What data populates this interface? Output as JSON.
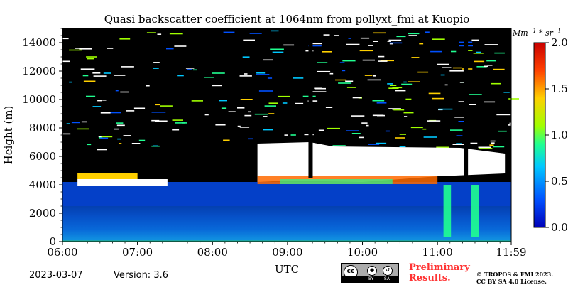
{
  "chart_data": {
    "type": "heatmap",
    "title": "Quasi backscatter coefficient at 1064nm from pollyxt_fmi at Kuopio",
    "xlabel": "UTC",
    "ylabel": "Height (m)",
    "x_ticks": [
      "06:00",
      "07:00",
      "08:00",
      "09:00",
      "10:00",
      "11:00",
      "11:59"
    ],
    "x_range_hours": [
      6.0,
      11.983
    ],
    "y_ticks": [
      0,
      2000,
      4000,
      6000,
      8000,
      10000,
      12000,
      14000
    ],
    "ylim": [
      0,
      15000
    ],
    "colorbar": {
      "label": "Mm^-1 * sr^-1",
      "range": [
        0.0,
        2.0
      ],
      "ticks": [
        "0.0",
        "0.5",
        "1.0",
        "1.5",
        "2.0"
      ],
      "colormap": [
        "#0000b8",
        "#0050ff",
        "#00c8ff",
        "#20ff90",
        "#a0ff00",
        "#ffd000",
        "#ff4000",
        "#c80000"
      ]
    },
    "features": [
      {
        "name": "boundary layer",
        "t_start": 6.0,
        "t_end": 11.98,
        "h_bottom": 0,
        "h_top": 2500,
        "value": 0.3
      },
      {
        "name": "aerosol layer",
        "t_start": 6.0,
        "t_end": 11.98,
        "h_bottom": 2500,
        "h_top": 4200,
        "value": 0.2
      },
      {
        "name": "thin cloud",
        "t_start": 6.2,
        "t_end": 7.4,
        "h_bottom": 3900,
        "h_top": 4800,
        "value": 2.0
      },
      {
        "name": "cloud deck",
        "t_start": 8.6,
        "t_end": 11.9,
        "h_bottom": 4000,
        "h_top": 7000,
        "value": 2.0
      }
    ]
  },
  "footer": {
    "date": "2023-03-07",
    "version": "Version: 3.6",
    "prelim_line1": "Preliminary",
    "prelim_line2": "Results.",
    "copyright_line1": "© TROPOS & FMI 2023.",
    "copyright_line2": "CC BY SA 4.0 License.",
    "cc_text": "cc",
    "cc_by": "BY",
    "cc_sa": "SA"
  }
}
